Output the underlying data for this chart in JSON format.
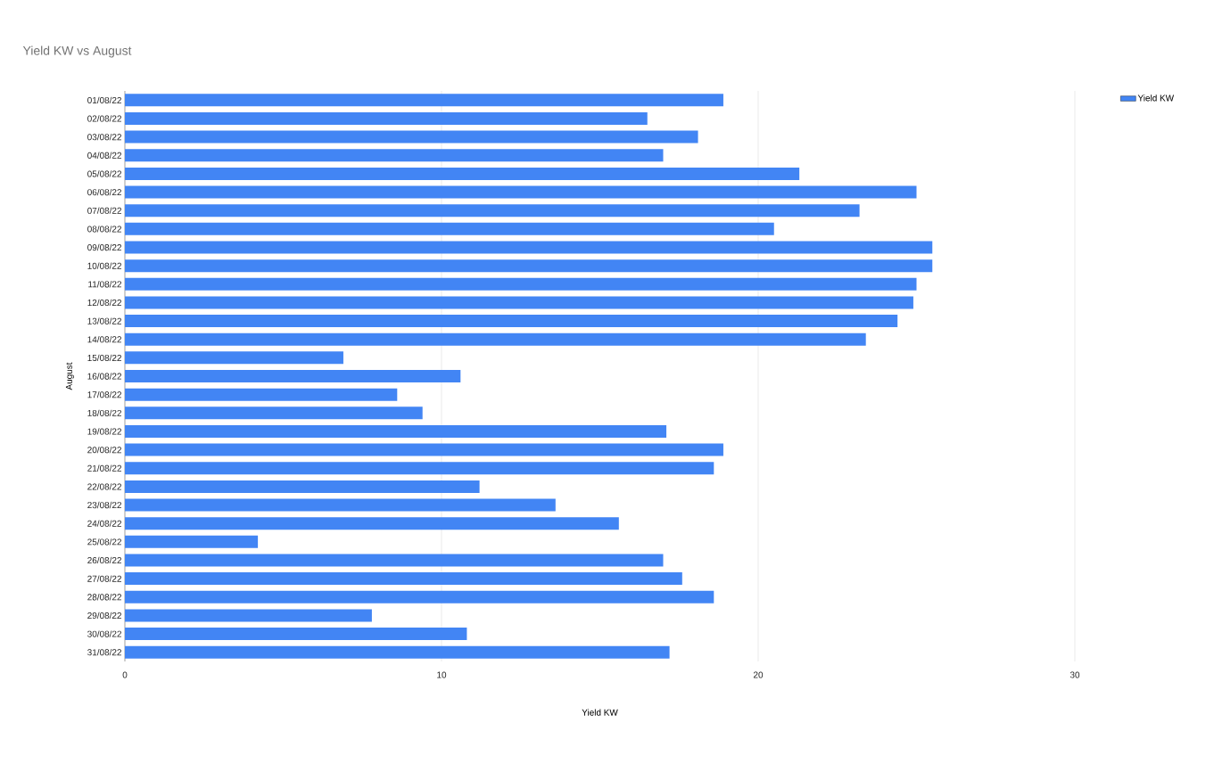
{
  "chart_data": {
    "type": "bar",
    "orientation": "horizontal",
    "title": "Yield KW vs August",
    "xlabel": "Yield KW",
    "ylabel": "August",
    "categories": [
      "01/08/22",
      "02/08/22",
      "03/08/22",
      "04/08/22",
      "05/08/22",
      "06/08/22",
      "07/08/22",
      "08/08/22",
      "09/08/22",
      "10/08/22",
      "11/08/22",
      "12/08/22",
      "13/08/22",
      "14/08/22",
      "15/08/22",
      "16/08/22",
      "17/08/22",
      "18/08/22",
      "19/08/22",
      "20/08/22",
      "21/08/22",
      "22/08/22",
      "23/08/22",
      "24/08/22",
      "25/08/22",
      "26/08/22",
      "27/08/22",
      "28/08/22",
      "29/08/22",
      "30/08/22",
      "31/08/22"
    ],
    "series": [
      {
        "name": "Yield KW",
        "color": "#4285f4",
        "values": [
          18.9,
          16.5,
          18.1,
          17.0,
          21.3,
          25.0,
          23.2,
          20.5,
          25.5,
          25.5,
          25.0,
          24.9,
          24.4,
          23.4,
          6.9,
          10.6,
          8.6,
          9.4,
          17.1,
          18.9,
          18.6,
          11.2,
          13.6,
          15.6,
          4.2,
          17.0,
          17.6,
          18.6,
          7.8,
          10.8,
          17.2
        ]
      }
    ],
    "xlim": [
      0,
      30
    ],
    "xticks": [
      0,
      10,
      20,
      30
    ],
    "grid": "x",
    "legend": "top right"
  }
}
